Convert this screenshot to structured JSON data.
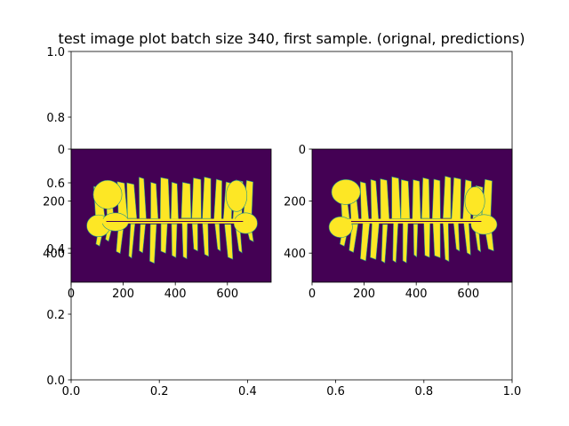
{
  "title": "test image plot batch size 340, first sample. (orignal, predictions)",
  "colors": {
    "background": "#440154",
    "foreground": "#fde725",
    "edge": "#21918c",
    "axis": "#000000"
  },
  "chart_data": [
    {
      "role": "outer-axes",
      "type": "blank",
      "title": "test image plot batch size 340, first sample. (orignal, predictions)",
      "xlim": [
        0.0,
        1.0
      ],
      "ylim": [
        0.0,
        1.0
      ],
      "x_ticks": [
        0.0,
        0.2,
        0.4,
        0.6,
        0.8,
        1.0
      ],
      "x_tick_labels": [
        "0.0",
        "0.2",
        "0.4",
        "0.6",
        "0.8",
        "1.0"
      ],
      "y_ticks": [
        0.0,
        0.2,
        0.4,
        0.6,
        0.8,
        1.0
      ],
      "y_tick_labels": [
        "0.0",
        "0.2",
        "0.4",
        "0.6",
        "0.8",
        "1.0"
      ]
    },
    {
      "role": "image-original",
      "type": "heatmap",
      "colormap": "viridis",
      "image_size": [
        768,
        512
      ],
      "xlim": [
        0,
        768
      ],
      "ylim": [
        512,
        0
      ],
      "x_ticks": [
        0,
        200,
        400,
        600
      ],
      "x_tick_labels": [
        "0",
        "200",
        "400",
        "600"
      ],
      "y_ticks": [
        0,
        200,
        400
      ],
      "y_tick_labels": [
        "0",
        "200",
        "400"
      ]
    },
    {
      "role": "image-prediction",
      "type": "heatmap",
      "colormap": "viridis",
      "image_size": [
        768,
        512
      ],
      "xlim": [
        0,
        768
      ],
      "ylim": [
        512,
        0
      ],
      "x_ticks": [
        0,
        200,
        400,
        600
      ],
      "x_tick_labels": [
        "0",
        "200",
        "400",
        "600"
      ],
      "y_ticks": [
        0,
        200,
        400
      ],
      "y_tick_labels": [
        "0",
        "200",
        "400"
      ]
    }
  ]
}
